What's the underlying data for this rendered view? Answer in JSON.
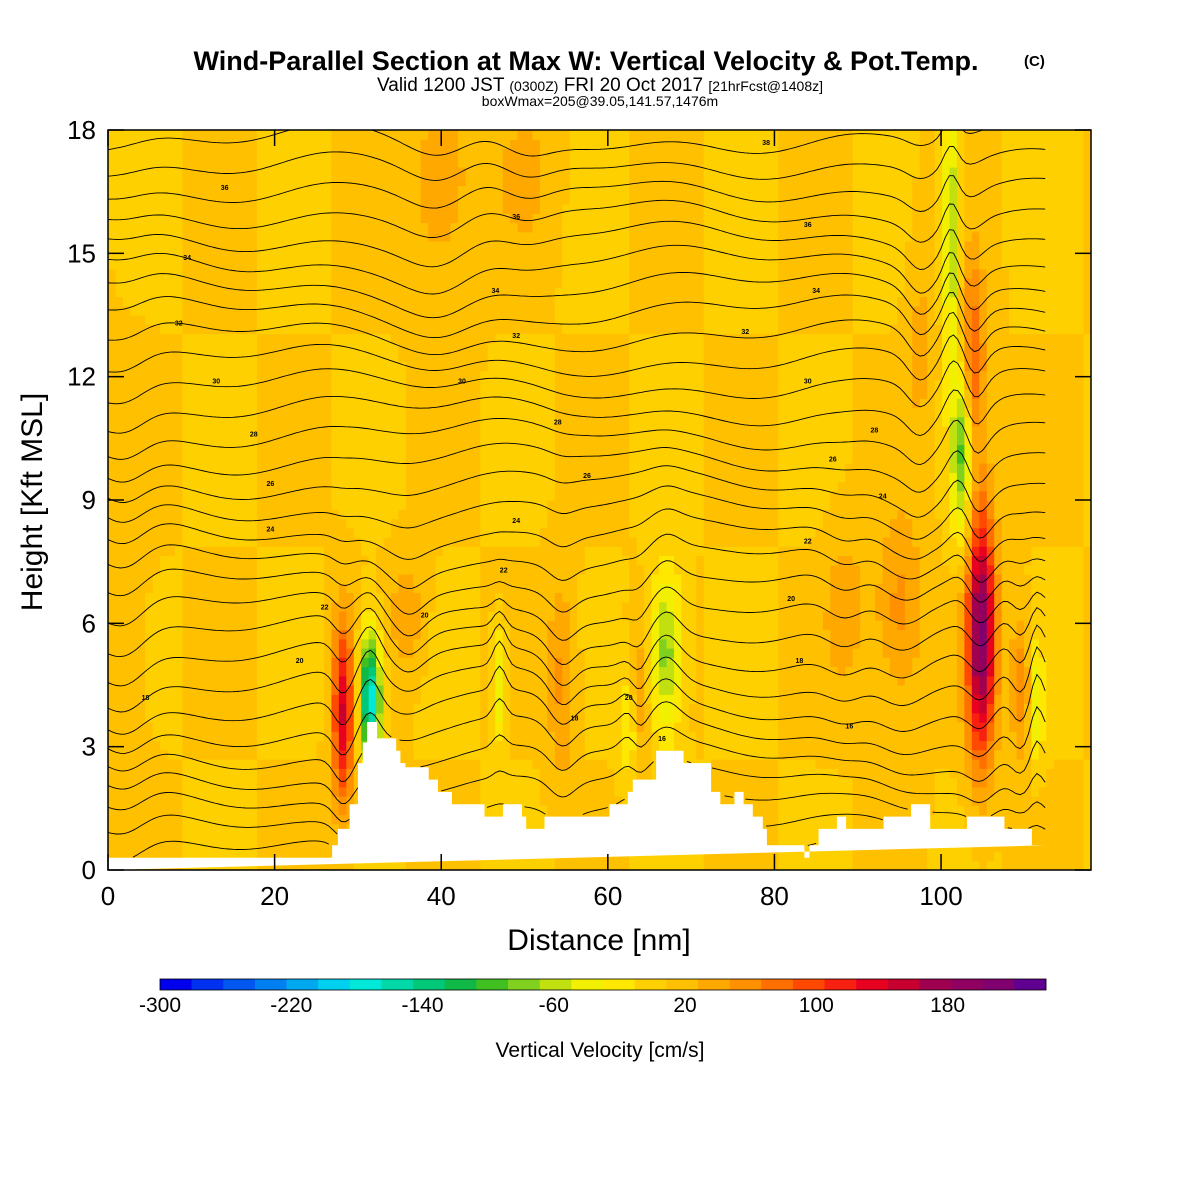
{
  "chart_data": {
    "type": "heatmap",
    "title": "Wind-Parallel Section at Max W: Vertical Velocity & Pot.Temp.",
    "title_mark": "(C)",
    "subtitle_parts": [
      "Valid 1200 JST",
      "(0300Z)",
      "FRI 20 Oct 2017",
      "[21hrFcst@1408z]"
    ],
    "subtitle2": "boxWmax=205@39.05,141.57,1476m",
    "xlabel": "Distance [nm]",
    "ylabel": "Height [Kft MSL]",
    "xlim": [
      0,
      118
    ],
    "ylim": [
      0,
      18
    ],
    "xticks": [
      0,
      20,
      40,
      60,
      80,
      100
    ],
    "yticks": [
      0,
      3,
      6,
      9,
      12,
      15,
      18
    ],
    "colorbar": {
      "label": "Vertical Velocity [cm/s]",
      "range": [
        -300,
        240
      ],
      "step": 20,
      "tick_values": [
        -300,
        -220,
        -140,
        -60,
        20,
        100,
        180
      ],
      "tick_labels": [
        "-300",
        "-220",
        "-140",
        "-60",
        "20",
        "100",
        "180"
      ],
      "colors": [
        "#0000ee",
        "#0030f0",
        "#0058f0",
        "#0080f0",
        "#00a8f0",
        "#00d0f0",
        "#00e8d8",
        "#00d8a8",
        "#00c878",
        "#10b848",
        "#40c020",
        "#80d020",
        "#c0e010",
        "#f0f000",
        "#ffe800",
        "#ffd000",
        "#ffc000",
        "#ffa800",
        "#ff9000",
        "#ff7000",
        "#ff4800",
        "#f82010",
        "#e80020",
        "#c80030",
        "#a00050",
        "#900060",
        "#800070",
        "#600090"
      ]
    },
    "background_value": 20,
    "terrain": {
      "x": [
        0,
        26.9,
        26.9,
        27.6,
        27.6,
        29,
        29,
        30,
        30,
        30.6,
        30.6,
        31.1,
        31.1,
        32.3,
        32.3,
        34.6,
        34.6,
        35.1,
        35.1,
        35.7,
        35.7,
        36.3,
        36.3,
        38.5,
        38.5,
        39.6,
        39.6,
        40.7,
        40.7,
        41.3,
        41.3,
        43,
        43,
        45.2,
        45.2,
        47.4,
        47.4,
        48.5,
        48.5,
        49.7,
        49.7,
        50.2,
        50.2,
        52.4,
        52.4,
        55.7,
        55.7,
        58,
        58,
        60.2,
        60.2,
        62.4,
        62.4,
        63,
        63,
        64.7,
        64.7,
        65.8,
        65.8,
        66.9,
        66.9,
        69.1,
        69.1,
        71.3,
        71.3,
        72.4,
        72.4,
        73.5,
        73.5,
        75.2,
        75.2,
        76.3,
        76.3,
        77.4,
        77.4,
        78.6,
        78.6,
        79.1,
        79.1,
        83.6,
        83.6,
        84.2,
        84.2,
        85.3,
        85.3,
        86.4,
        86.4,
        87.5,
        87.5,
        88.6,
        88.6,
        92,
        92,
        93.1,
        93.1,
        96.4,
        96.4,
        97.6,
        97.6,
        98.7,
        98.7,
        101.4,
        101.4,
        103.1,
        103.1,
        107.6,
        107.6,
        110.9,
        110.9,
        112.6,
        112.6,
        118
      ],
      "y": [
        0.3,
        0.3,
        0.6,
        0.6,
        1,
        1,
        1.6,
        1.6,
        2.6,
        2.6,
        3.1,
        3.1,
        3.6,
        3.6,
        3.2,
        3.2,
        2.9,
        2.9,
        2.6,
        2.6,
        2.5,
        2.5,
        2.5,
        2.5,
        2.2,
        2.2,
        1.9,
        1.9,
        1.9,
        1.9,
        1.6,
        1.6,
        1.6,
        1.6,
        1.3,
        1.3,
        1.6,
        1.6,
        1.6,
        1.6,
        1.3,
        1.3,
        1,
        1,
        1.3,
        1.3,
        1.3,
        1.3,
        1.3,
        1.3,
        1.6,
        1.6,
        1.9,
        1.9,
        2.2,
        2.2,
        2.2,
        2.2,
        2.9,
        2.9,
        2.9,
        2.9,
        2.6,
        2.6,
        2.6,
        2.6,
        1.9,
        1.9,
        1.6,
        1.6,
        1.9,
        1.9,
        1.6,
        1.6,
        1.3,
        1.3,
        1,
        1,
        0.6,
        0.6,
        0.3,
        0.3,
        0.6,
        0.6,
        1,
        1,
        1,
        1,
        1.3,
        1.3,
        1,
        1,
        1,
        1,
        1.3,
        1.3,
        1.6,
        1.6,
        1.6,
        1.6,
        1,
        1,
        1,
        1,
        1.3,
        1.3,
        1,
        1,
        0.6,
        0.6
      ]
    },
    "vertical_velocity_features": [
      {
        "x": 28.2,
        "y": 3.8,
        "sx": 0.9,
        "sy": 1.6,
        "value": 160
      },
      {
        "x": 31.5,
        "y": 4.2,
        "sx": 0.9,
        "sy": 1.1,
        "value": -180
      },
      {
        "x": 104.8,
        "y": 5.8,
        "sx": 1.2,
        "sy": 2.2,
        "value": 220
      },
      {
        "x": 102.5,
        "y": 10.2,
        "sx": 0.9,
        "sy": 1.5,
        "value": -90
      },
      {
        "x": 101.2,
        "y": 15.5,
        "sx": 0.7,
        "sy": 2.2,
        "value": -70
      },
      {
        "x": 103.8,
        "y": 12.4,
        "sx": 1.0,
        "sy": 1.6,
        "value": 110
      },
      {
        "x": 67.0,
        "y": 5.3,
        "sx": 1.3,
        "sy": 1.4,
        "value": -75
      },
      {
        "x": 62.8,
        "y": 3.6,
        "sx": 0.8,
        "sy": 1.0,
        "value": -60
      },
      {
        "x": 63.4,
        "y": 4.0,
        "sx": 0.8,
        "sy": 1.2,
        "value": 90
      },
      {
        "x": 54.5,
        "y": 4.6,
        "sx": 1.2,
        "sy": 1.8,
        "value": 65
      },
      {
        "x": 36.0,
        "y": 6.2,
        "sx": 1.5,
        "sy": 1.0,
        "value": 55
      },
      {
        "x": 47.0,
        "y": 4.5,
        "sx": 0.6,
        "sy": 0.9,
        "value": -45
      },
      {
        "x": 109.5,
        "y": 4.5,
        "sx": 0.8,
        "sy": 1.2,
        "value": 80
      },
      {
        "x": 111.5,
        "y": 4.0,
        "sx": 0.5,
        "sy": 1.0,
        "value": -40
      },
      {
        "x": 95.0,
        "y": 6.3,
        "sx": 2.0,
        "sy": 1.6,
        "value": 70
      },
      {
        "x": 88.5,
        "y": 6.4,
        "sx": 1.8,
        "sy": 1.5,
        "value": 50
      },
      {
        "x": 40.0,
        "y": 16.5,
        "sx": 3.0,
        "sy": 1.8,
        "value": 55
      },
      {
        "x": 50.0,
        "y": 17.0,
        "sx": 2.5,
        "sy": 1.2,
        "value": 45
      },
      {
        "x": 97.5,
        "y": 13.0,
        "sx": 1.2,
        "sy": 2.0,
        "value": 45
      },
      {
        "x": 2.0,
        "y": 6.0,
        "sx": 2.0,
        "sy": 4.0,
        "value": 35
      }
    ],
    "theta_contour_labels": [
      {
        "x": 14,
        "y": 16.6,
        "text": "36"
      },
      {
        "x": 9.5,
        "y": 14.9,
        "text": "34"
      },
      {
        "x": 8.5,
        "y": 13.3,
        "text": "32"
      },
      {
        "x": 13,
        "y": 11.9,
        "text": "30"
      },
      {
        "x": 17.5,
        "y": 10.6,
        "text": "28"
      },
      {
        "x": 19.5,
        "y": 9.4,
        "text": "26"
      },
      {
        "x": 19.5,
        "y": 8.3,
        "text": "24"
      },
      {
        "x": 26,
        "y": 6.4,
        "text": "22"
      },
      {
        "x": 23,
        "y": 5.1,
        "text": "20"
      },
      {
        "x": 4.5,
        "y": 4.2,
        "text": "18"
      },
      {
        "x": 49,
        "y": 15.9,
        "text": "36"
      },
      {
        "x": 46.5,
        "y": 14.1,
        "text": "34"
      },
      {
        "x": 49,
        "y": 13.0,
        "text": "32"
      },
      {
        "x": 42.5,
        "y": 11.9,
        "text": "30"
      },
      {
        "x": 54,
        "y": 10.9,
        "text": "28"
      },
      {
        "x": 57.5,
        "y": 9.6,
        "text": "26"
      },
      {
        "x": 49,
        "y": 8.5,
        "text": "24"
      },
      {
        "x": 47.5,
        "y": 7.3,
        "text": "22"
      },
      {
        "x": 38,
        "y": 6.2,
        "text": "20"
      },
      {
        "x": 56,
        "y": 3.7,
        "text": "18"
      },
      {
        "x": 62.5,
        "y": 4.2,
        "text": "20"
      },
      {
        "x": 66.5,
        "y": 3.2,
        "text": "16"
      },
      {
        "x": 79,
        "y": 17.7,
        "text": "38"
      },
      {
        "x": 84,
        "y": 15.7,
        "text": "36"
      },
      {
        "x": 85,
        "y": 14.1,
        "text": "34"
      },
      {
        "x": 76.5,
        "y": 13.1,
        "text": "32"
      },
      {
        "x": 84,
        "y": 11.9,
        "text": "30"
      },
      {
        "x": 92,
        "y": 10.7,
        "text": "28"
      },
      {
        "x": 87,
        "y": 10.0,
        "text": "26"
      },
      {
        "x": 93,
        "y": 9.1,
        "text": "24"
      },
      {
        "x": 84,
        "y": 8.0,
        "text": "22"
      },
      {
        "x": 82,
        "y": 6.6,
        "text": "20"
      },
      {
        "x": 83,
        "y": 5.1,
        "text": "18"
      },
      {
        "x": 89,
        "y": 3.5,
        "text": "16"
      }
    ]
  }
}
